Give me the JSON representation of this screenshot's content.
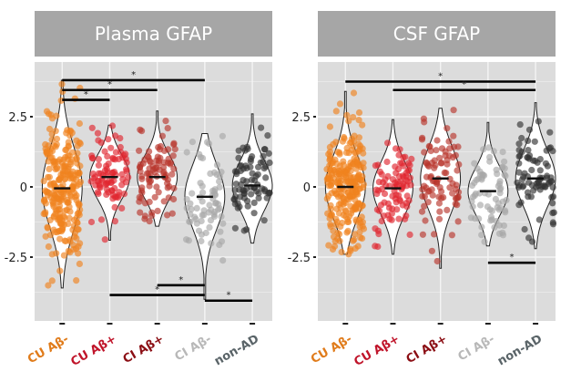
{
  "chart_data": [
    {
      "type": "violin",
      "title": "Plasma GFAP",
      "xlabel": "",
      "ylabel": "",
      "ylim": [
        -4.6,
        4.5
      ],
      "y_ticks": [
        2.5,
        0,
        -2.5
      ],
      "y_tick_labels": [
        "2.5",
        "0",
        "-2.5"
      ],
      "grid": true,
      "categories": [
        "CU Aβ-",
        "CU Aβ+",
        "CI Aβ+",
        "CI Aβ-",
        "non-AD"
      ],
      "category_colors": [
        "#f0831e",
        "#e02630",
        "#b8352c",
        "#a8a8a8",
        "#333333"
      ],
      "label_colors": [
        "#e07b1a",
        "#c0142a",
        "#8b0e14",
        "#b8b8b8",
        "#5a6468"
      ],
      "medians": [
        -0.05,
        0.35,
        0.35,
        -0.35,
        0.05
      ],
      "ranges": [
        [
          -3.6,
          3.8
        ],
        [
          -1.9,
          2.2
        ],
        [
          -1.4,
          2.7
        ],
        [
          -4.0,
          1.9
        ],
        [
          -2.0,
          2.6
        ]
      ],
      "n_points": [
        260,
        90,
        90,
        70,
        80
      ],
      "significance": [
        {
          "from": "CU Aβ-",
          "to": "CU Aβ+",
          "y": 3.1,
          "label": "*"
        },
        {
          "from": "CU Aβ-",
          "to": "CI Aβ+",
          "y": 3.45,
          "label": "*"
        },
        {
          "from": "CU Aβ-",
          "to": "CI Aβ-",
          "y": 3.8,
          "label": "*"
        },
        {
          "from": "CI Aβ+",
          "to": "CI Aβ-",
          "y": -3.5,
          "label": "*"
        },
        {
          "from": "CU Aβ+",
          "to": "CI Aβ-",
          "y": -3.85,
          "label": "*"
        },
        {
          "from": "CI Aβ-",
          "to": "non-AD",
          "y": -4.05,
          "label": "*"
        }
      ]
    },
    {
      "type": "violin",
      "title": "CSF GFAP",
      "xlabel": "",
      "ylabel": "",
      "ylim": [
        -4.6,
        4.5
      ],
      "y_ticks": [
        2.5,
        0,
        -2.5
      ],
      "y_tick_labels": [
        "2.5",
        "0",
        "-2.5"
      ],
      "grid": true,
      "categories": [
        "CU Aβ-",
        "CU Aβ+",
        "CI Aβ+",
        "CI Aβ-",
        "non-AD"
      ],
      "category_colors": [
        "#f0831e",
        "#e02630",
        "#b8352c",
        "#a8a8a8",
        "#333333"
      ],
      "label_colors": [
        "#e07b1a",
        "#c0142a",
        "#8b0e14",
        "#b8b8b8",
        "#5a6468"
      ],
      "medians": [
        0.0,
        -0.05,
        0.3,
        -0.15,
        0.3
      ],
      "ranges": [
        [
          -2.4,
          3.4
        ],
        [
          -2.4,
          2.4
        ],
        [
          -2.9,
          2.8
        ],
        [
          -2.1,
          2.3
        ],
        [
          -2.2,
          3.0
        ]
      ],
      "n_points": [
        260,
        90,
        90,
        70,
        80
      ],
      "significance": [
        {
          "from": "CU Aβ-",
          "to": "non-AD",
          "y": 3.75,
          "label": "*"
        },
        {
          "from": "CU Aβ+",
          "to": "non-AD",
          "y": 3.45,
          "label": "*"
        },
        {
          "from": "CI Aβ-",
          "to": "non-AD",
          "y": -2.7,
          "label": "*"
        }
      ]
    }
  ]
}
